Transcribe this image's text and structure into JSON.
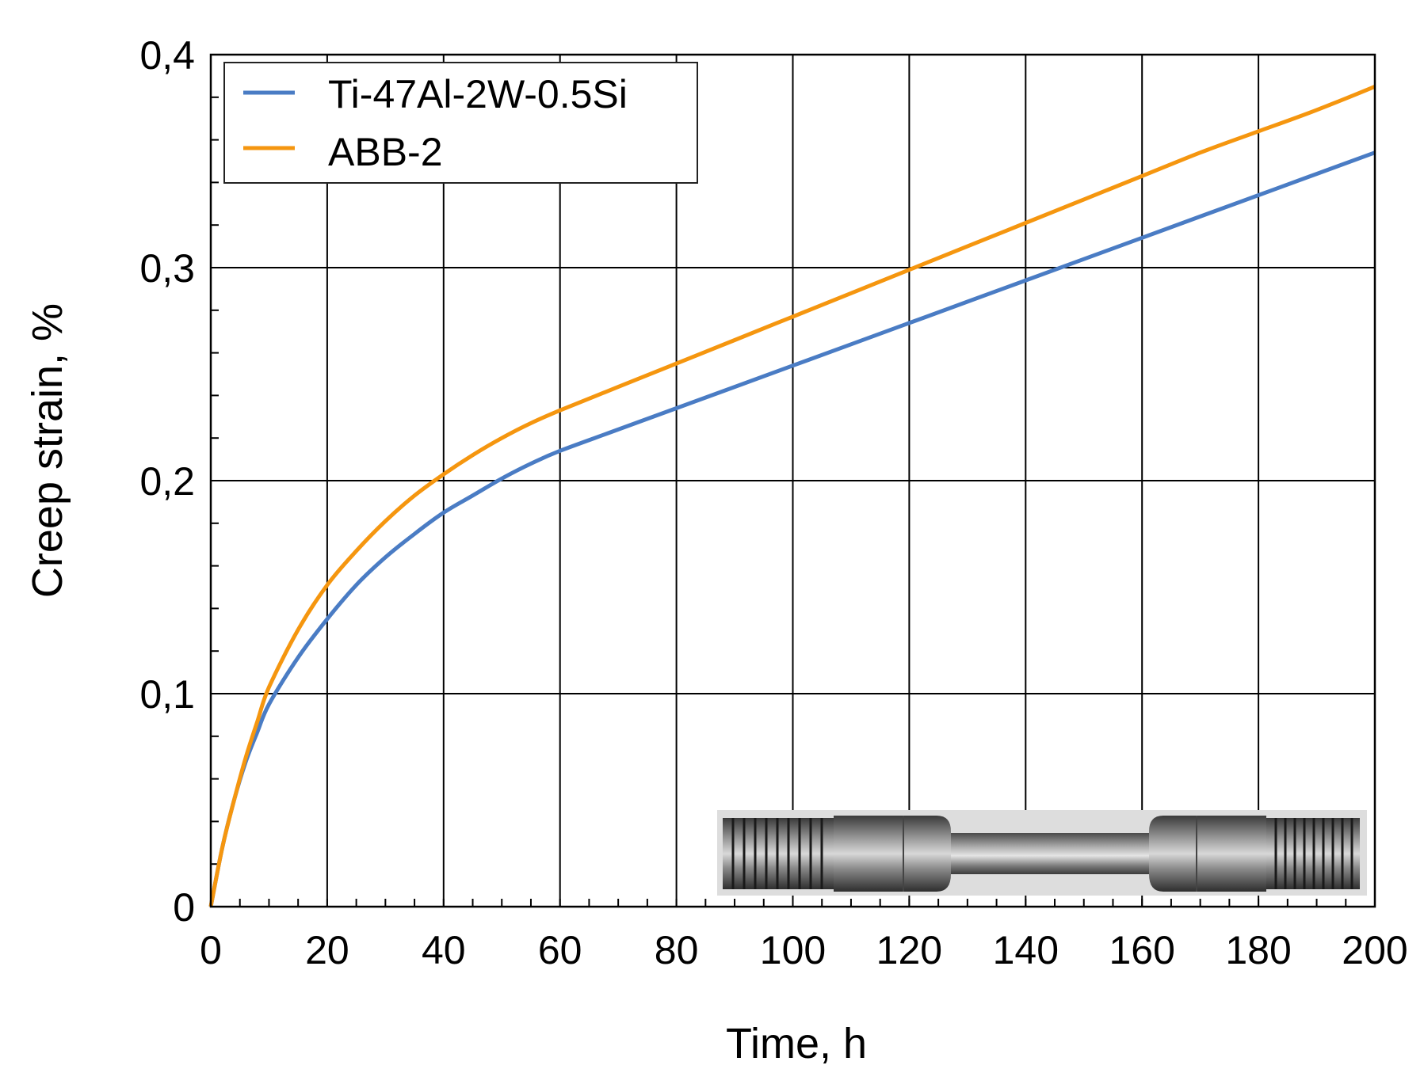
{
  "chart_data": {
    "type": "line",
    "xlabel": "Time, h",
    "ylabel": "Creep strain, %",
    "xlim": [
      0,
      200
    ],
    "ylim": [
      0,
      0.4
    ],
    "x_ticks": [
      0,
      20,
      40,
      60,
      80,
      100,
      120,
      140,
      160,
      180,
      200
    ],
    "x_tick_labels": [
      "0",
      "20",
      "40",
      "60",
      "80",
      "100",
      "120",
      "140",
      "160",
      "180",
      "200"
    ],
    "y_ticks": [
      0,
      0.1,
      0.2,
      0.3,
      0.4
    ],
    "y_tick_labels": [
      "0",
      "0,1",
      "0,2",
      "0,3",
      "0,4"
    ],
    "grid": true,
    "legend_position": "top-left",
    "series": [
      {
        "name": "Ti-47Al-2W-0.5Si",
        "color": "#4a7cc4",
        "x": [
          0,
          2,
          4,
          6,
          8,
          10,
          15,
          20,
          25,
          30,
          35,
          40,
          45,
          50,
          55,
          60,
          70,
          80,
          90,
          100,
          110,
          120,
          130,
          140,
          150,
          160,
          170,
          180,
          190,
          200
        ],
        "y": [
          0,
          0.028,
          0.05,
          0.068,
          0.082,
          0.095,
          0.117,
          0.135,
          0.151,
          0.164,
          0.175,
          0.185,
          0.193,
          0.201,
          0.208,
          0.214,
          0.224,
          0.234,
          0.244,
          0.254,
          0.264,
          0.274,
          0.284,
          0.294,
          0.304,
          0.314,
          0.324,
          0.334,
          0.344,
          0.354
        ]
      },
      {
        "name": "ABB-2",
        "color": "#f5960f",
        "x": [
          0,
          2,
          4,
          6,
          8,
          10,
          15,
          20,
          25,
          30,
          35,
          40,
          45,
          50,
          55,
          60,
          70,
          80,
          90,
          100,
          110,
          120,
          130,
          140,
          150,
          160,
          170,
          180,
          190,
          200
        ],
        "y": [
          0,
          0.028,
          0.05,
          0.07,
          0.087,
          0.103,
          0.13,
          0.151,
          0.167,
          0.181,
          0.193,
          0.203,
          0.212,
          0.22,
          0.227,
          0.233,
          0.244,
          0.255,
          0.266,
          0.277,
          0.288,
          0.299,
          0.31,
          0.321,
          0.332,
          0.343,
          0.354,
          0.364,
          0.374,
          0.385
        ]
      }
    ],
    "inset": {
      "type": "photo",
      "subject": "threaded creep test specimen"
    }
  }
}
